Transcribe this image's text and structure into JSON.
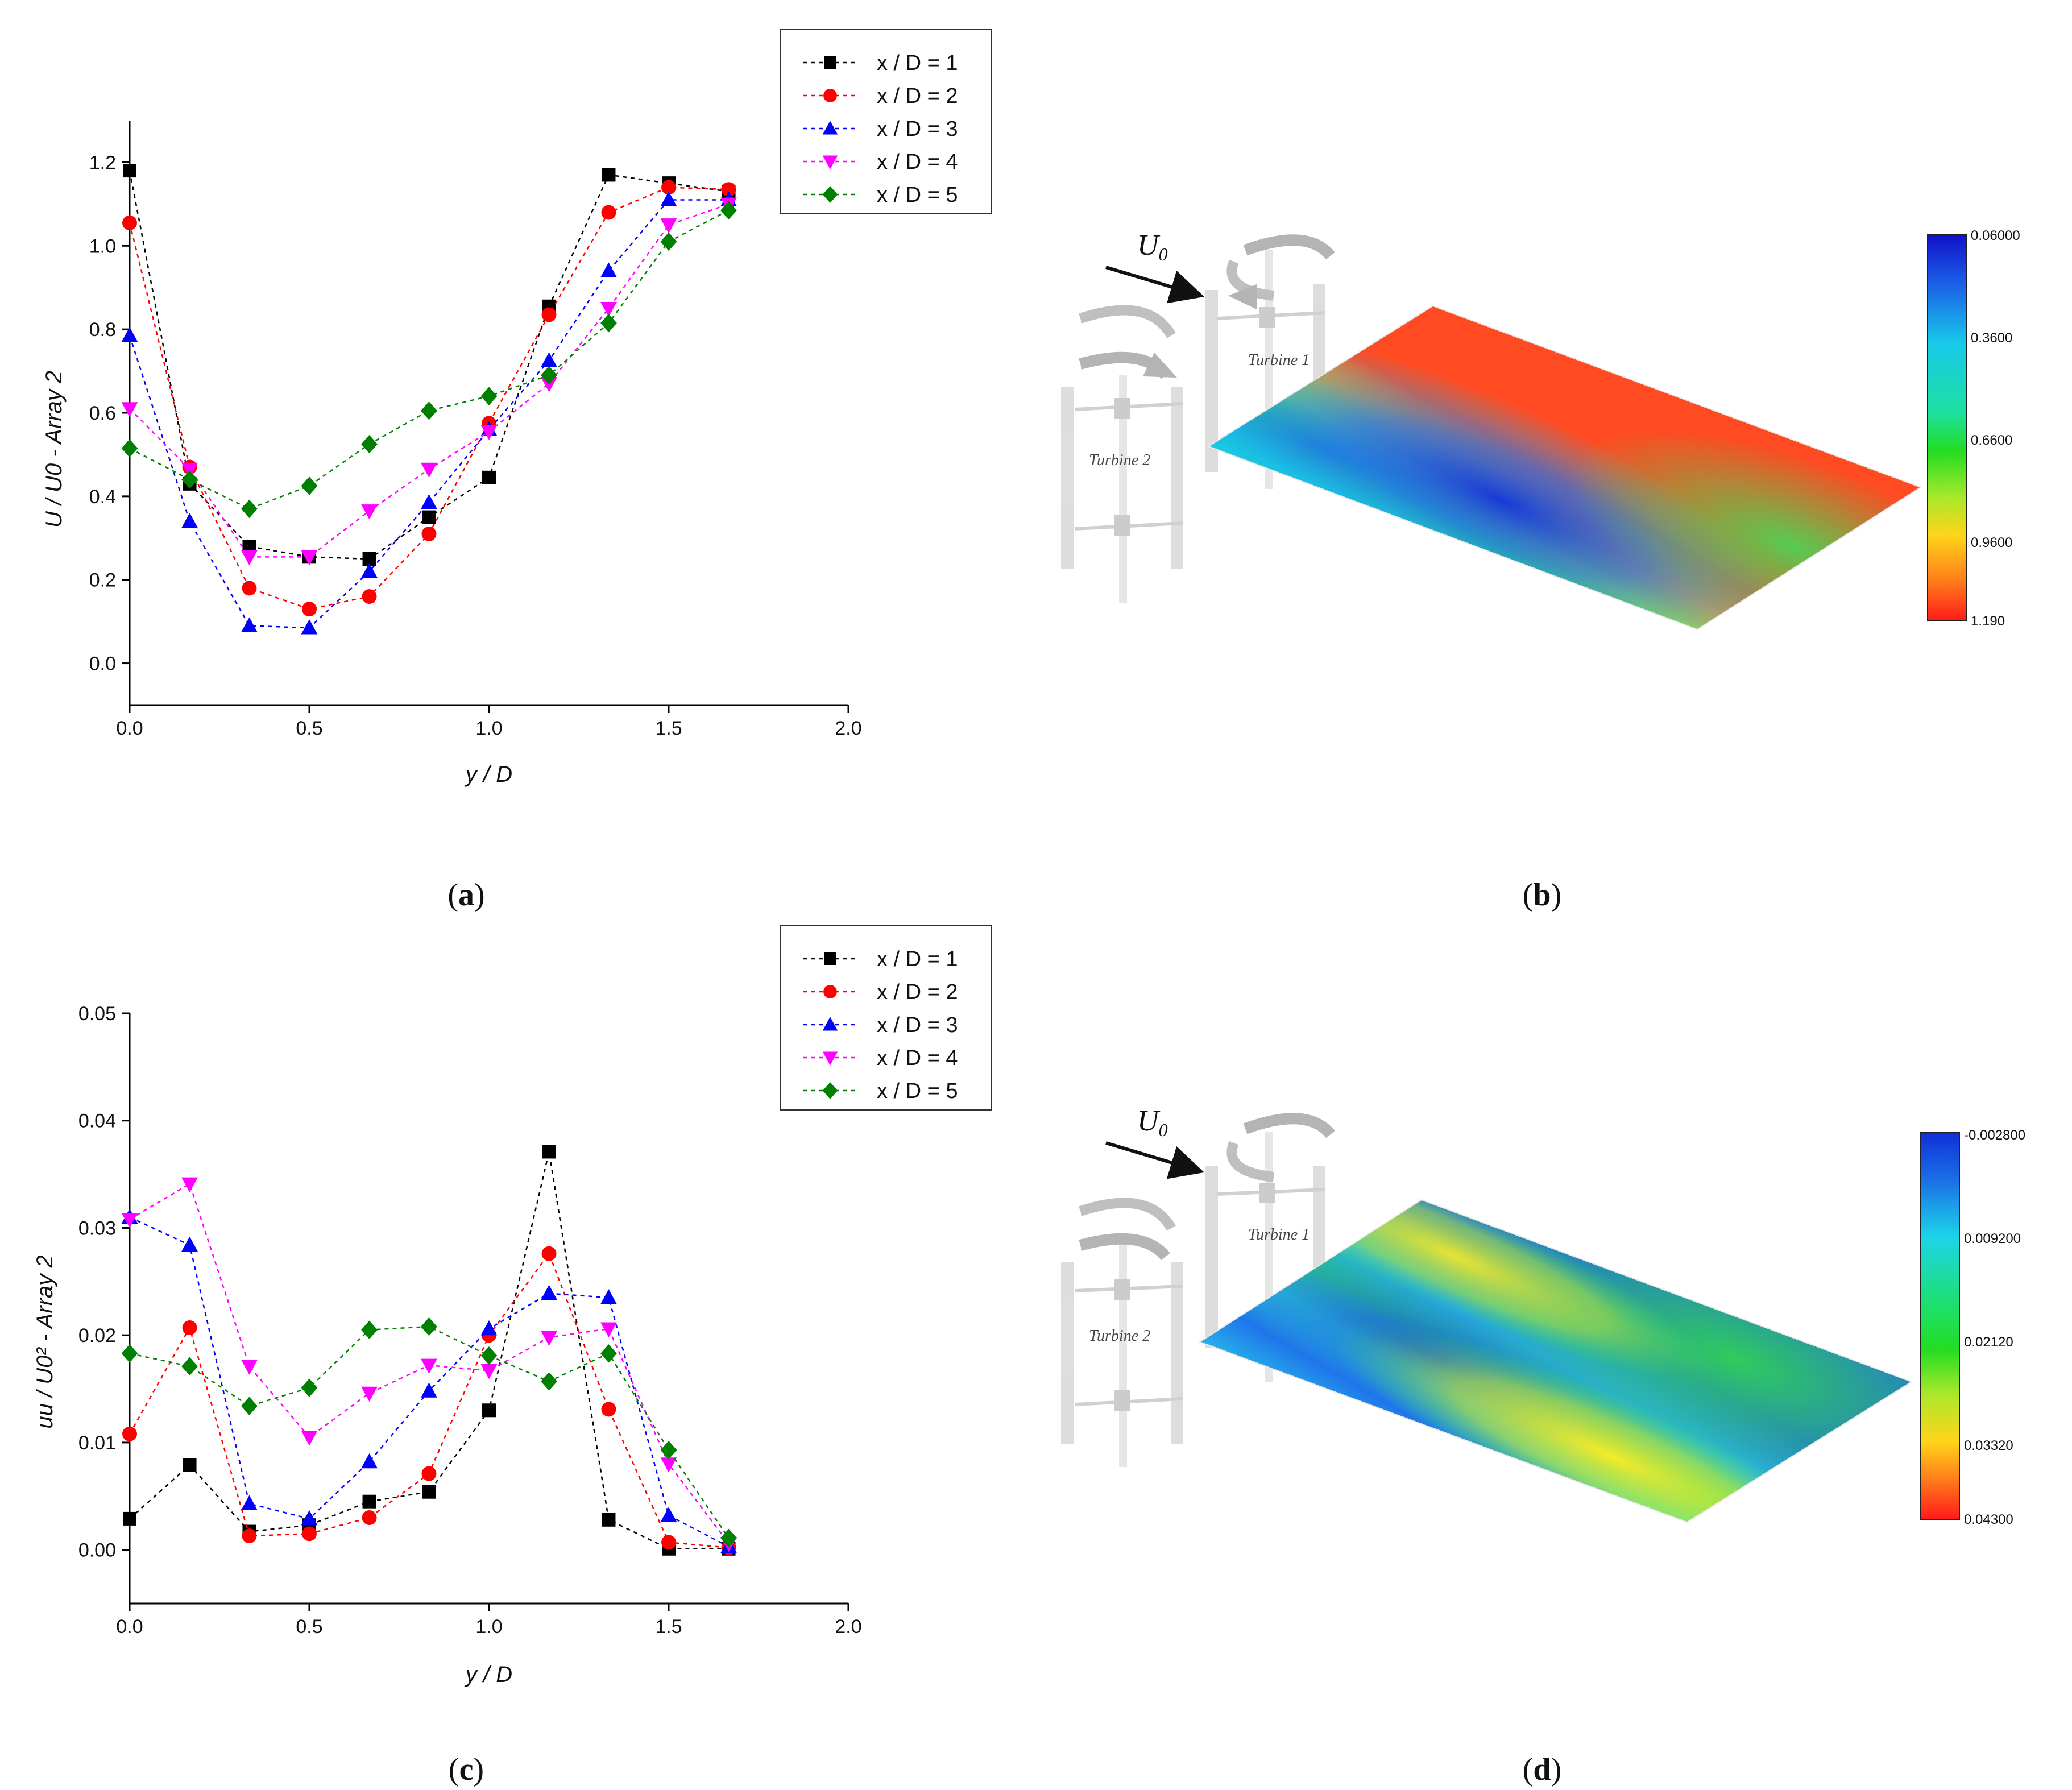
{
  "chart_data": [
    {
      "type": "line",
      "panel": "(a)",
      "caption_letter": "a",
      "xlabel": "y / D",
      "ylabel": "U / U0 - Array 2",
      "xlim": [
        0.0,
        2.0
      ],
      "ylim": [
        -0.1,
        1.3
      ],
      "xticks": [
        0.0,
        0.5,
        1.0,
        1.5,
        2.0
      ],
      "xtick_labels": [
        "0.0",
        "0.5",
        "1.0",
        "1.5",
        "2.0"
      ],
      "yticks": [
        0.0,
        0.2,
        0.4,
        0.6,
        0.8,
        1.0,
        1.2
      ],
      "ytick_labels": [
        "0.0",
        "0.2",
        "0.4",
        "0.6",
        "0.8",
        "1.0",
        "1.2"
      ],
      "x": [
        0.0,
        0.167,
        0.333,
        0.5,
        0.667,
        0.833,
        1.0,
        1.167,
        1.333,
        1.5,
        1.667
      ],
      "series": [
        {
          "name": "x / D = 1",
          "color": "#000000",
          "marker": "square",
          "values": [
            1.18,
            0.43,
            0.28,
            0.255,
            0.25,
            0.35,
            0.445,
            0.855,
            1.17,
            1.15,
            1.13
          ]
        },
        {
          "name": "x / D = 2",
          "color": "#ff0000",
          "marker": "circle",
          "values": [
            1.055,
            0.47,
            0.18,
            0.13,
            0.16,
            0.31,
            0.575,
            0.835,
            1.08,
            1.14,
            1.135
          ]
        },
        {
          "name": "x / D = 3",
          "color": "#0000ff",
          "marker": "triangle-up",
          "values": [
            0.785,
            0.34,
            0.09,
            0.085,
            0.22,
            0.385,
            0.56,
            0.725,
            0.94,
            1.11,
            1.11
          ]
        },
        {
          "name": "x / D = 4",
          "color": "#ff00ff",
          "marker": "triangle-down",
          "values": [
            0.61,
            0.465,
            0.255,
            0.255,
            0.365,
            0.465,
            0.555,
            0.67,
            0.85,
            1.05,
            1.1
          ]
        },
        {
          "name": "x / D = 5",
          "color": "#008000",
          "marker": "diamond",
          "values": [
            0.515,
            0.44,
            0.37,
            0.425,
            0.525,
            0.605,
            0.64,
            0.69,
            0.815,
            1.01,
            1.085
          ]
        }
      ]
    },
    {
      "type": "line",
      "panel": "(c)",
      "caption_letter": "c",
      "xlabel": "y / D",
      "ylabel": "uu / U0² - Array 2",
      "xlim": [
        0.0,
        2.0
      ],
      "ylim": [
        -0.005,
        0.05
      ],
      "xticks": [
        0.0,
        0.5,
        1.0,
        1.5,
        2.0
      ],
      "xtick_labels": [
        "0.0",
        "0.5",
        "1.0",
        "1.5",
        "2.0"
      ],
      "yticks": [
        0.0,
        0.01,
        0.02,
        0.03,
        0.04,
        0.05
      ],
      "ytick_labels": [
        "0.00",
        "0.01",
        "0.02",
        "0.03",
        "0.04",
        "0.05"
      ],
      "x": [
        0.0,
        0.167,
        0.333,
        0.5,
        0.667,
        0.833,
        1.0,
        1.167,
        1.333,
        1.5,
        1.667
      ],
      "series": [
        {
          "name": "x / D = 1",
          "color": "#000000",
          "marker": "square",
          "values": [
            0.0029,
            0.0079,
            0.0017,
            0.0023,
            0.0045,
            0.0054,
            0.013,
            0.0371,
            0.0028,
            0.0001,
            0.0001
          ]
        },
        {
          "name": "x / D = 2",
          "color": "#ff0000",
          "marker": "circle",
          "values": [
            0.0108,
            0.0207,
            0.0013,
            0.0015,
            0.003,
            0.0071,
            0.02,
            0.0276,
            0.0131,
            0.0007,
            0.0002
          ]
        },
        {
          "name": "x / D = 3",
          "color": "#0000ff",
          "marker": "triangle-up",
          "values": [
            0.031,
            0.0284,
            0.0043,
            0.0029,
            0.0082,
            0.0148,
            0.0206,
            0.0239,
            0.0235,
            0.0032,
            0.0003
          ]
        },
        {
          "name": "x / D = 4",
          "color": "#ff00ff",
          "marker": "triangle-down",
          "values": [
            0.0308,
            0.0341,
            0.0171,
            0.0105,
            0.0146,
            0.0172,
            0.0167,
            0.0198,
            0.0206,
            0.008,
            0.0006
          ]
        },
        {
          "name": "x / D = 5",
          "color": "#008000",
          "marker": "diamond",
          "values": [
            0.0183,
            0.0171,
            0.0134,
            0.0151,
            0.0205,
            0.0208,
            0.0181,
            0.0157,
            0.0183,
            0.0093,
            0.0011
          ]
        }
      ]
    },
    {
      "type": "heatmap",
      "panel": "(b)",
      "caption_letter": "b",
      "description_labels": [
        "Turbine 1",
        "Turbine 2",
        "U0"
      ],
      "colorbar_labels": [
        "0.06000",
        "0.3600",
        "0.6600",
        "0.9600",
        "1.190"
      ],
      "colorbar_range": [
        0.06,
        1.19
      ]
    },
    {
      "type": "heatmap",
      "panel": "(d)",
      "caption_letter": "d",
      "description_labels": [
        "Turbine 1",
        "Turbine 2",
        "U0"
      ],
      "colorbar_labels": [
        "-0.002800",
        "0.009200",
        "0.02120",
        "0.03320",
        "0.04300"
      ],
      "colorbar_range": [
        -0.0028,
        0.043
      ]
    }
  ]
}
